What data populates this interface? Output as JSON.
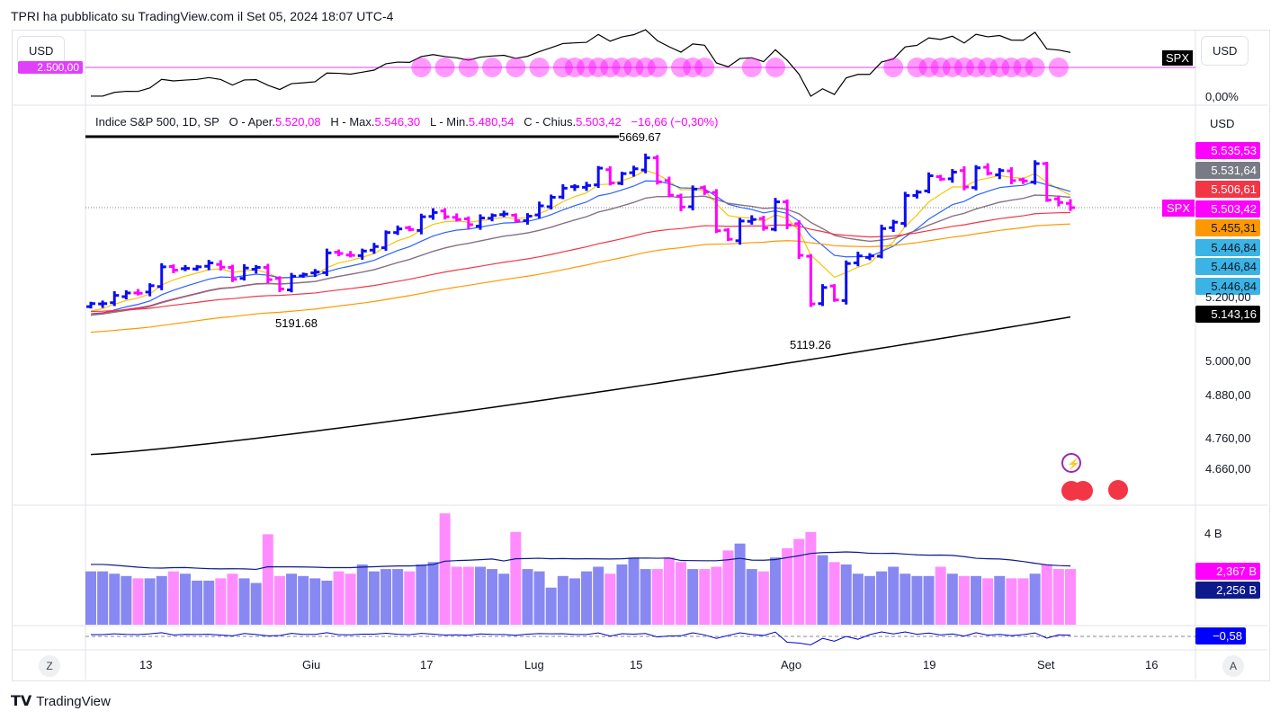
{
  "header": {
    "title": "TPRI ha pubblicato su TradingView.com il Set 05, 2024 18:07 UTC-4"
  },
  "top_panel": {
    "currency_left": "USD",
    "currency_right": "USD",
    "symbol_tag": "SPX",
    "left_value": "2.500,00",
    "right_value": "0,00%"
  },
  "main": {
    "currency": "USD",
    "legend": {
      "name": "Indice S&P 500, 1D, SP",
      "o_label": "O - Aper.",
      "o": "5.520,08",
      "h_label": "H - Max.",
      "h": "5.546,30",
      "l_label": "L - Min.",
      "l": "5.480,54",
      "c_label": "C - Chius.",
      "c": "5.503,42",
      "change": "−16,66 (−0,30%)"
    },
    "annotations": {
      "high": "5669.67",
      "low1": "5191.68",
      "low2": "5119.26"
    },
    "symbol_tag": "SPX",
    "price_labels": [
      {
        "text": "5.535,53",
        "bg": "#ff00ff",
        "fg": "#ffffff"
      },
      {
        "text": "5.531,64",
        "bg": "#787b86",
        "fg": "#ffffff"
      },
      {
        "text": "5.506,61",
        "bg": "#f23645",
        "fg": "#ffffff"
      },
      {
        "text": "5.503,42",
        "bg": "#ff00ff",
        "fg": "#ffffff"
      },
      {
        "text": "5.455,31",
        "bg": "#ff9800",
        "fg": "#131722"
      },
      {
        "text": "5.446,84",
        "bg": "#3bb3e4",
        "fg": "#131722"
      },
      {
        "text": "5.446,84",
        "bg": "#3bb3e4",
        "fg": "#131722"
      },
      {
        "text": "5.446,84",
        "bg": "#3bb3e4",
        "fg": "#131722"
      },
      {
        "text": "5.143,16",
        "bg": "#000000",
        "fg": "#ffffff"
      }
    ],
    "axis_ticks": [
      "5.200,00",
      "5.000,00",
      "4.880,00",
      "4.760,00",
      "4.660,00"
    ]
  },
  "volume": {
    "tick": "4 B",
    "label1": "2,367 B",
    "label2": "2,256 B"
  },
  "oscillator": {
    "label": "−0,58"
  },
  "time_axis": {
    "labels": [
      "13",
      "Giu",
      "17",
      "Lug",
      "15",
      "Ago",
      "19",
      "Set",
      "16"
    ],
    "left_btn": "Z",
    "right_btn": "A"
  },
  "footer": {
    "brand": "TradingView"
  },
  "chart_data": {
    "type": "ohlc",
    "closes": [
      5187,
      5187,
      5214,
      5222,
      5221,
      5246,
      5308,
      5297,
      5303,
      5308,
      5321,
      5307,
      5267,
      5304,
      5306,
      5266,
      5235,
      5277,
      5283,
      5291,
      5354,
      5352,
      5346,
      5360,
      5375,
      5421,
      5433,
      5431,
      5473,
      5487,
      5473,
      5464,
      5447,
      5469,
      5477,
      5482,
      5460,
      5475,
      5509,
      5537,
      5567,
      5572,
      5576,
      5633,
      5584,
      5615,
      5631,
      5667,
      5588,
      5544,
      5505,
      5564,
      5555,
      5427,
      5399,
      5459,
      5464,
      5436,
      5522,
      5446,
      5346,
      5186,
      5240,
      5199,
      5319,
      5344,
      5344,
      5434,
      5455,
      5543,
      5554,
      5608,
      5597,
      5620,
      5571,
      5634,
      5616,
      5625,
      5592,
      5591,
      5648,
      5528,
      5520,
      5503
    ],
    "volumes": [
      2.3,
      2.3,
      2.2,
      2.1,
      2.0,
      2.0,
      2.1,
      2.3,
      2.2,
      1.9,
      1.9,
      2.0,
      2.2,
      2.0,
      1.8,
      3.9,
      2.1,
      2.2,
      2.1,
      2.0,
      1.9,
      2.3,
      2.2,
      2.6,
      2.3,
      2.4,
      2.4,
      2.3,
      2.6,
      2.7,
      4.8,
      2.5,
      2.5,
      2.5,
      2.4,
      2.2,
      4.0,
      2.4,
      2.3,
      1.6,
      2.1,
      2.0,
      2.3,
      2.5,
      2.2,
      2.6,
      2.9,
      2.4,
      2.4,
      2.9,
      2.7,
      2.4,
      2.4,
      2.5,
      3.2,
      3.5,
      2.4,
      2.3,
      2.9,
      3.3,
      3.7,
      4.0,
      3.0,
      2.7,
      2.6,
      2.2,
      2.1,
      2.3,
      2.5,
      2.2,
      2.1,
      2.1,
      2.5,
      2.2,
      2.1,
      2.1,
      2.0,
      2.1,
      2.0,
      2.0,
      2.2,
      2.6,
      2.4,
      2.4
    ],
    "sma200": [
      4690,
      5143
    ],
    "ylim": [
      4620,
      5700
    ]
  }
}
